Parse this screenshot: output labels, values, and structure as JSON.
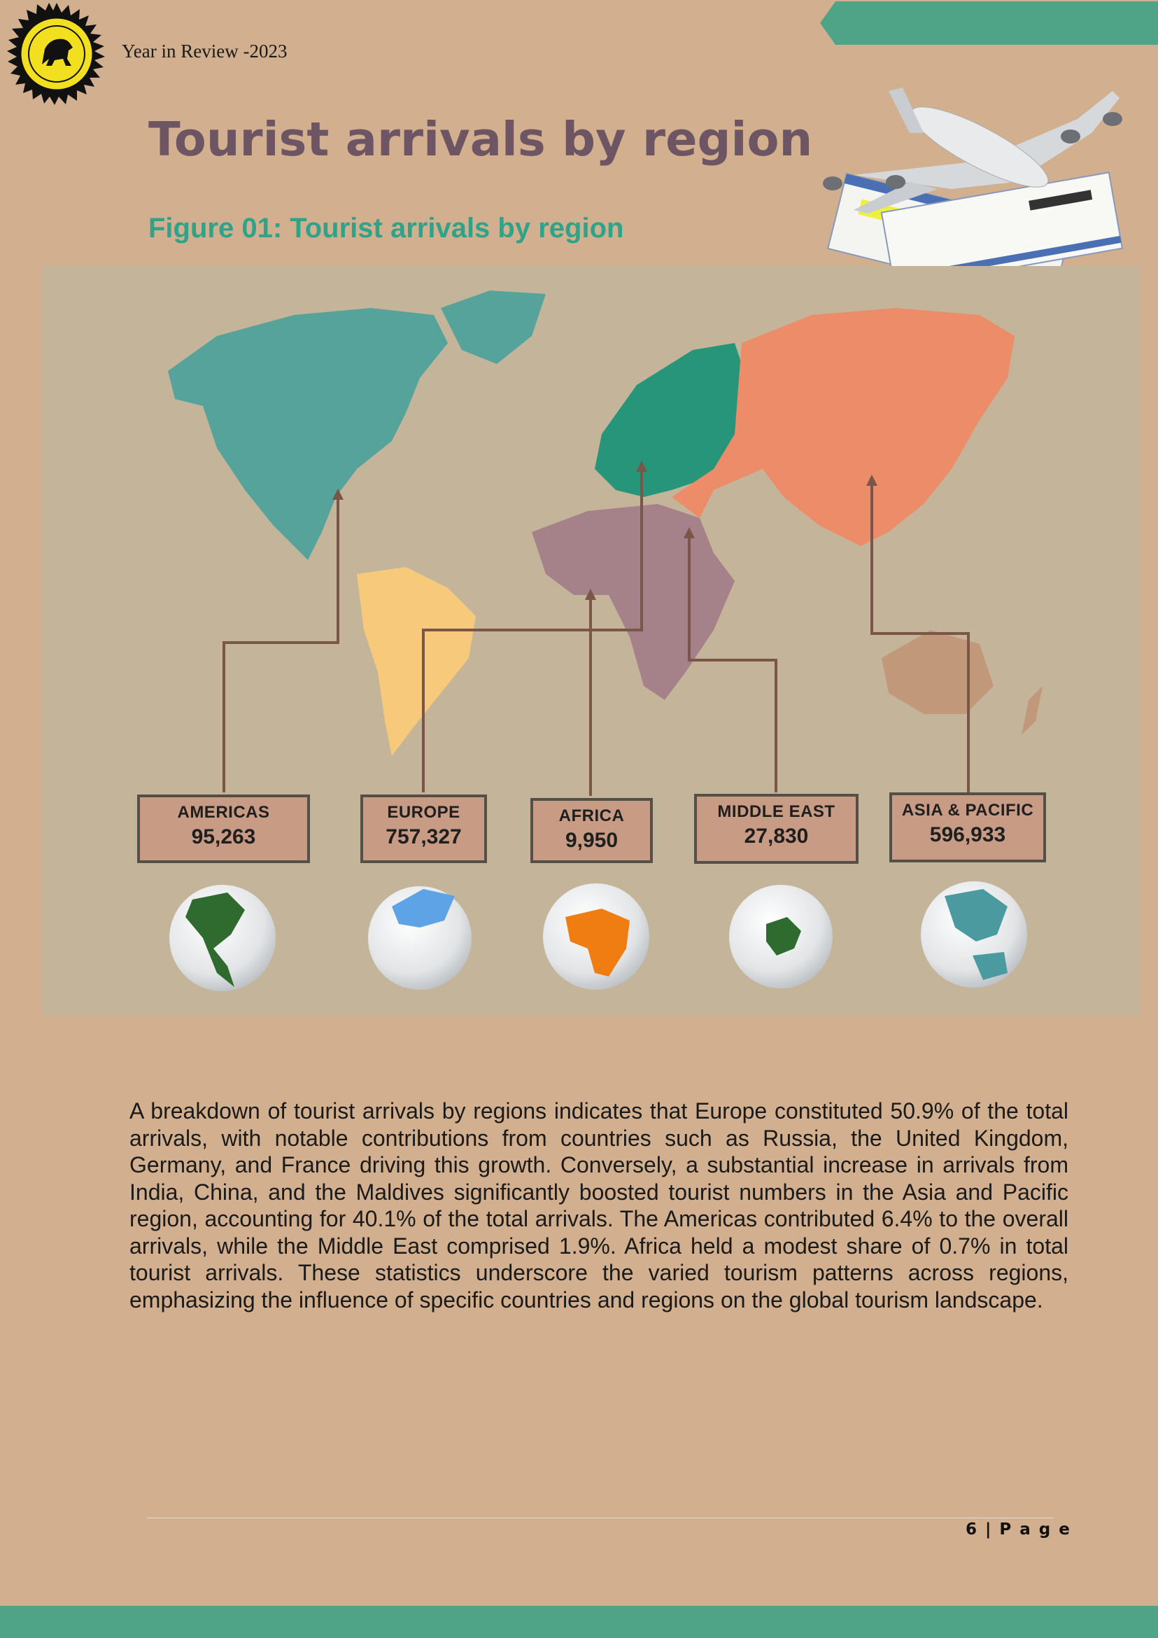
{
  "header": {
    "title": "Year in Review -2023"
  },
  "page": {
    "heading": "Tourist arrivals by region",
    "figure_caption": "Figure 01: Tourist arrivals by region"
  },
  "chart_data": {
    "type": "table",
    "title": "Figure 01: Tourist arrivals by region",
    "categories": [
      "AMERICAS",
      "EUROPE",
      "AFRICA",
      "MIDDLE EAST",
      "ASIA & PACIFIC"
    ],
    "values": [
      95263,
      757327,
      9950,
      27830,
      596933
    ],
    "labels": [
      "95,263",
      "757,327",
      "9,950",
      "27,830",
      "596,933"
    ],
    "colors": {
      "americas": "#55a39b",
      "south_america": "#f7c97a",
      "europe": "#26957a",
      "africa": "#a5828a",
      "asia": "#ec8c68",
      "oceania": "#c2987a"
    }
  },
  "regions": [
    {
      "name": "AMERICAS",
      "value": "95,263",
      "globe_color": "#2f6b2f"
    },
    {
      "name": "EUROPE",
      "value": "757,327",
      "globe_color": "#5ea3e6"
    },
    {
      "name": "AFRICA",
      "value": "9,950",
      "globe_color": "#f07d12"
    },
    {
      "name": "MIDDLE EAST",
      "value": "27,830",
      "globe_color": "#2f6b2f"
    },
    {
      "name": "ASIA & PACIFIC",
      "value": "596,933",
      "globe_color": "#4b9aa0"
    }
  ],
  "body": {
    "paragraph": "A breakdown of tourist arrivals by regions indicates that Europe constituted 50.9% of the total arrivals, with notable contributions from countries such as Russia, the United Kingdom, Germany, and France driving this growth. Conversely, a substantial increase in arrivals from India, China, and the Maldives significantly boosted tourist numbers in the Asia and Pacific region, accounting for 40.1% of the total arrivals. The Americas contributed 6.4% to the overall arrivals, while the Middle East comprised 1.9%. Africa held a modest share of 0.7% in total tourist arrivals. These statistics underscore the varied tourism patterns across regions, emphasizing the influence of specific countries and regions on the global tourism landscape."
  },
  "footer": {
    "page_number": "6 | P a g e"
  },
  "colors": {
    "accent": "#4fa386",
    "heading": "#6e5563",
    "caption": "#2ea38a",
    "page_bg": "#d2b08f"
  }
}
